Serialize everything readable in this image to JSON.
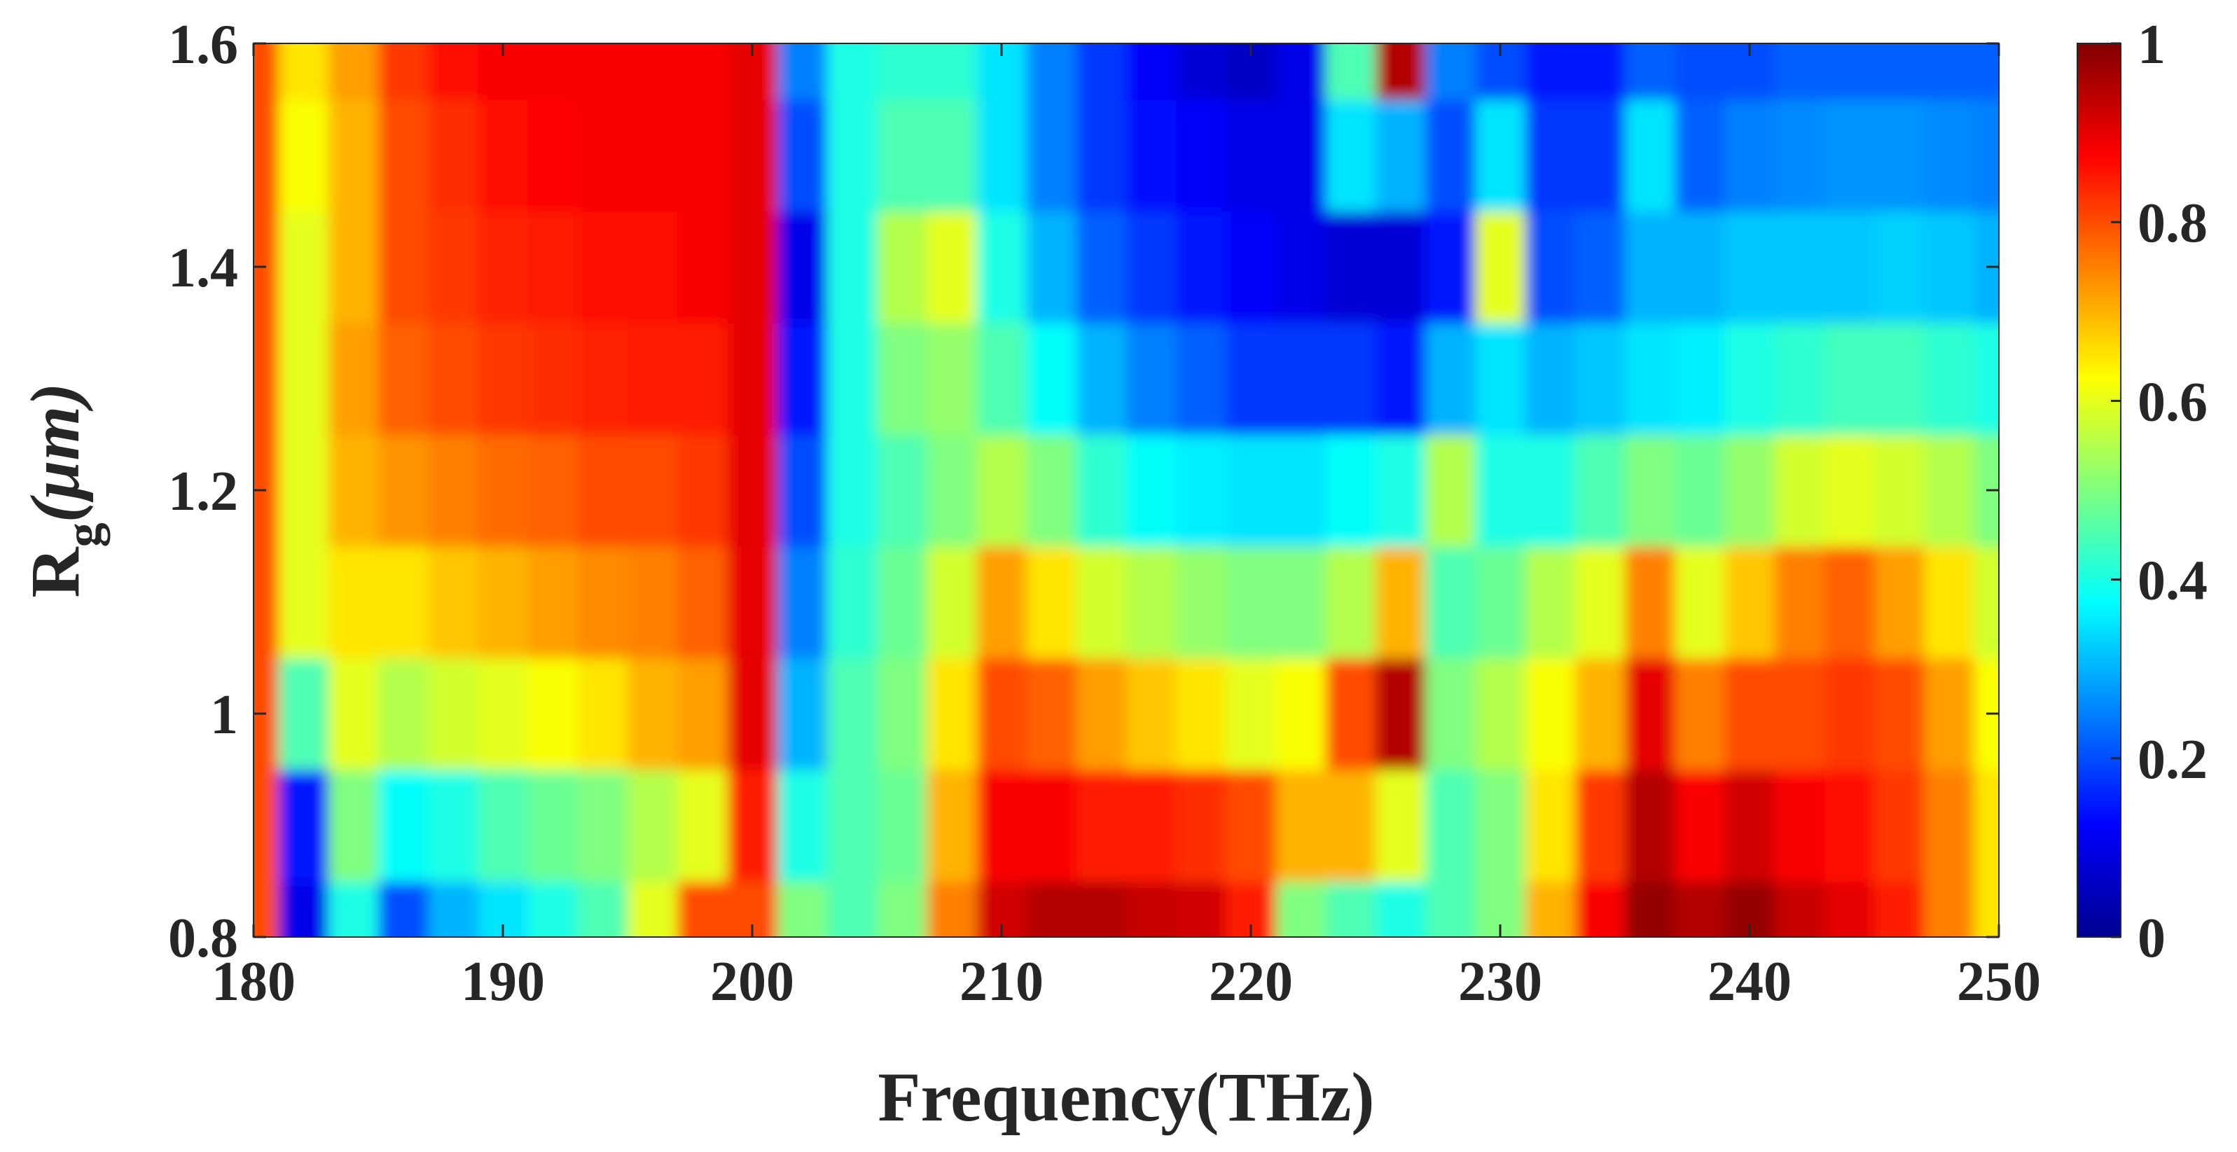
{
  "chart_data": {
    "type": "heatmap",
    "title": "",
    "xlabel": "Frequency(THz)",
    "ylabel": {
      "base": "R",
      "subscript": "g",
      "unit": "(μm)"
    },
    "xlim": [
      180,
      250
    ],
    "ylim": [
      0.8,
      1.6
    ],
    "x_ticks": [
      180,
      190,
      200,
      210,
      220,
      230,
      240,
      250
    ],
    "x_tick_labels": [
      "180",
      "190",
      "200",
      "210",
      "220",
      "230",
      "240",
      "250"
    ],
    "y_ticks": [
      0.8,
      1.0,
      1.2,
      1.4,
      1.6
    ],
    "y_tick_labels": [
      "0.8",
      "1",
      "1.2",
      "1.4",
      "1.6"
    ],
    "colorbar": {
      "range": [
        0,
        1
      ],
      "ticks": [
        0,
        0.2,
        0.4,
        0.6,
        0.8,
        1
      ],
      "tick_labels": [
        "0",
        "0.2",
        "0.4",
        "0.6",
        "0.8",
        "1"
      ],
      "colormap": "jet"
    },
    "x": [
      180,
      182,
      184,
      186,
      188,
      190,
      192,
      194,
      196,
      198,
      200,
      202,
      204,
      206,
      208,
      210,
      212,
      214,
      216,
      218,
      220,
      222,
      224,
      226,
      228,
      230,
      232,
      234,
      236,
      238,
      240,
      242,
      244,
      246,
      248,
      250
    ],
    "y": [
      0.8,
      0.9,
      1.0,
      1.1,
      1.2,
      1.3,
      1.4,
      1.5,
      1.6
    ],
    "z": [
      [
        0.8,
        0.1,
        0.4,
        0.2,
        0.3,
        0.35,
        0.4,
        0.45,
        0.6,
        0.8,
        0.8,
        0.5,
        0.45,
        0.5,
        0.75,
        0.92,
        0.95,
        0.95,
        0.93,
        0.92,
        0.85,
        0.5,
        0.45,
        0.4,
        0.45,
        0.5,
        0.7,
        0.88,
        0.98,
        0.95,
        0.98,
        0.93,
        0.9,
        0.85,
        0.75,
        0.65
      ],
      [
        0.8,
        0.15,
        0.5,
        0.38,
        0.4,
        0.45,
        0.48,
        0.5,
        0.55,
        0.6,
        0.85,
        0.4,
        0.45,
        0.48,
        0.7,
        0.88,
        0.88,
        0.85,
        0.85,
        0.83,
        0.8,
        0.7,
        0.7,
        0.6,
        0.45,
        0.5,
        0.65,
        0.82,
        0.95,
        0.88,
        0.92,
        0.88,
        0.86,
        0.82,
        0.75,
        0.65
      ],
      [
        0.8,
        0.45,
        0.6,
        0.55,
        0.58,
        0.6,
        0.62,
        0.65,
        0.7,
        0.72,
        0.9,
        0.3,
        0.45,
        0.5,
        0.65,
        0.8,
        0.78,
        0.72,
        0.68,
        0.65,
        0.6,
        0.62,
        0.8,
        0.95,
        0.5,
        0.55,
        0.62,
        0.7,
        0.9,
        0.75,
        0.8,
        0.8,
        0.82,
        0.8,
        0.72,
        0.62
      ],
      [
        0.8,
        0.6,
        0.65,
        0.65,
        0.68,
        0.7,
        0.72,
        0.74,
        0.75,
        0.78,
        0.9,
        0.25,
        0.42,
        0.48,
        0.58,
        0.72,
        0.65,
        0.58,
        0.55,
        0.52,
        0.5,
        0.5,
        0.55,
        0.7,
        0.45,
        0.48,
        0.55,
        0.6,
        0.75,
        0.6,
        0.68,
        0.75,
        0.78,
        0.72,
        0.65,
        0.58
      ],
      [
        0.8,
        0.6,
        0.7,
        0.73,
        0.75,
        0.77,
        0.78,
        0.8,
        0.8,
        0.82,
        0.9,
        0.2,
        0.4,
        0.45,
        0.5,
        0.55,
        0.5,
        0.42,
        0.38,
        0.36,
        0.35,
        0.35,
        0.38,
        0.4,
        0.55,
        0.4,
        0.4,
        0.45,
        0.5,
        0.48,
        0.52,
        0.58,
        0.6,
        0.58,
        0.55,
        0.5
      ],
      [
        0.8,
        0.6,
        0.72,
        0.78,
        0.8,
        0.82,
        0.83,
        0.84,
        0.85,
        0.85,
        0.9,
        0.15,
        0.4,
        0.5,
        0.52,
        0.45,
        0.38,
        0.3,
        0.25,
        0.22,
        0.18,
        0.18,
        0.18,
        0.15,
        0.3,
        0.35,
        0.3,
        0.32,
        0.35,
        0.36,
        0.4,
        0.42,
        0.44,
        0.44,
        0.42,
        0.4
      ],
      [
        0.8,
        0.6,
        0.7,
        0.8,
        0.82,
        0.84,
        0.85,
        0.86,
        0.86,
        0.88,
        0.9,
        0.1,
        0.4,
        0.55,
        0.6,
        0.4,
        0.3,
        0.22,
        0.18,
        0.15,
        0.12,
        0.1,
        0.08,
        0.08,
        0.15,
        0.6,
        0.2,
        0.22,
        0.3,
        0.3,
        0.32,
        0.32,
        0.32,
        0.33,
        0.32,
        0.3
      ],
      [
        0.8,
        0.62,
        0.7,
        0.8,
        0.83,
        0.86,
        0.87,
        0.88,
        0.88,
        0.88,
        0.9,
        0.2,
        0.4,
        0.45,
        0.45,
        0.35,
        0.25,
        0.18,
        0.14,
        0.12,
        0.1,
        0.1,
        0.35,
        0.3,
        0.2,
        0.35,
        0.18,
        0.18,
        0.35,
        0.22,
        0.25,
        0.26,
        0.27,
        0.27,
        0.26,
        0.25
      ],
      [
        0.8,
        0.65,
        0.72,
        0.82,
        0.86,
        0.88,
        0.88,
        0.88,
        0.88,
        0.88,
        0.9,
        0.25,
        0.4,
        0.42,
        0.42,
        0.35,
        0.25,
        0.18,
        0.12,
        0.08,
        0.06,
        0.1,
        0.45,
        0.95,
        0.25,
        0.2,
        0.15,
        0.15,
        0.22,
        0.2,
        0.2,
        0.22,
        0.22,
        0.22,
        0.22,
        0.22
      ]
    ]
  }
}
